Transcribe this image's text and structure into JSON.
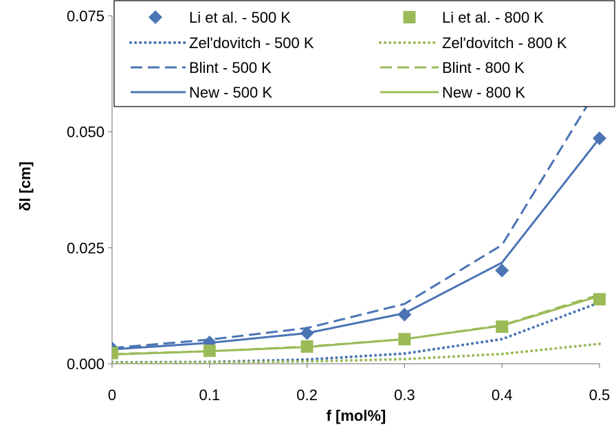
{
  "chart_data": {
    "type": "line",
    "title": "",
    "xlabel": "f  [mol%]",
    "ylabel": "δl [cm]",
    "x": [
      0,
      0.1,
      0.2,
      0.3,
      0.4,
      0.5
    ],
    "x_tick_labels": [
      "0",
      "0.1",
      "0.2",
      "0.3",
      "0.4",
      "0.5"
    ],
    "y_tick_labels": [
      "0.000",
      "0.025",
      "0.050",
      "0.075"
    ],
    "xlim": [
      0,
      0.5
    ],
    "ylim": [
      0,
      0.075
    ],
    "grid": false,
    "legend_position": "top, inside plot, two columns",
    "series": [
      {
        "name": "Li et al. - 500 K",
        "style": "marker-diamond",
        "color": "#4a74b4",
        "values": [
          0.0033,
          0.0046,
          0.0066,
          0.0106,
          0.0201,
          0.0486
        ]
      },
      {
        "name": "Li et al. - 800 K",
        "style": "marker-square",
        "color": "#9bbb59",
        "values": [
          0.0023,
          0.0028,
          0.0037,
          0.0053,
          0.008,
          0.0139
        ]
      },
      {
        "name": "Zel'dovitch - 500 K",
        "style": "dotted",
        "color": "#4a74b4",
        "values": [
          0.0003,
          0.0004,
          0.0009,
          0.0022,
          0.0053,
          0.0132
        ]
      },
      {
        "name": "Zel'dovitch - 800 K",
        "style": "dotted",
        "color": "#9bbb59",
        "values": [
          0.0002,
          0.0003,
          0.0005,
          0.001,
          0.0021,
          0.0043
        ]
      },
      {
        "name": "Blint - 500 K",
        "style": "dashed",
        "color": "#4a74b4",
        "values": [
          0.0034,
          0.0052,
          0.0077,
          0.0129,
          0.0256,
          0.06
        ]
      },
      {
        "name": "Blint - 800 K",
        "style": "dashed",
        "color": "#9bbb59",
        "values": [
          0.0021,
          0.0027,
          0.0037,
          0.0053,
          0.0083,
          0.0149
        ]
      },
      {
        "name": "New - 500 K",
        "style": "solid",
        "color": "#4a74b4",
        "values": [
          0.0031,
          0.0045,
          0.0066,
          0.0109,
          0.0218,
          0.0486
        ]
      },
      {
        "name": "New - 800 K",
        "style": "solid",
        "color": "#9bbb59",
        "values": [
          0.002,
          0.0027,
          0.0036,
          0.0053,
          0.0082,
          0.0146
        ]
      }
    ]
  }
}
